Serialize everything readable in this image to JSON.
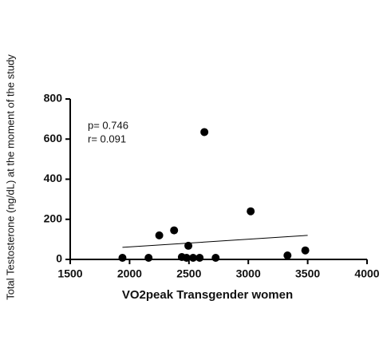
{
  "chart_data": {
    "type": "scatter",
    "x_label": "VO2peak Transgender women",
    "y_label": "Total Testosterone (ng/dL) at the moment of the study",
    "annotations": [
      "p= 0.746",
      "r= 0.091"
    ],
    "x": [
      1940,
      2160,
      2250,
      2375,
      2440,
      2480,
      2495,
      2535,
      2590,
      2630,
      2725,
      3020,
      3330,
      3480
    ],
    "values": [
      8,
      8,
      120,
      145,
      12,
      8,
      68,
      8,
      8,
      635,
      8,
      240,
      20,
      45
    ],
    "color": "#000000",
    "trendline": {
      "x": [
        1940,
        3500
      ],
      "y": [
        60,
        120
      ]
    },
    "xlim": [
      1500,
      4000
    ],
    "xticks": [
      1500,
      2000,
      2500,
      3000,
      3500,
      4000
    ],
    "ylim": [
      0,
      800
    ],
    "yticks": [
      0,
      200,
      400,
      600,
      800
    ],
    "grid": false
  }
}
